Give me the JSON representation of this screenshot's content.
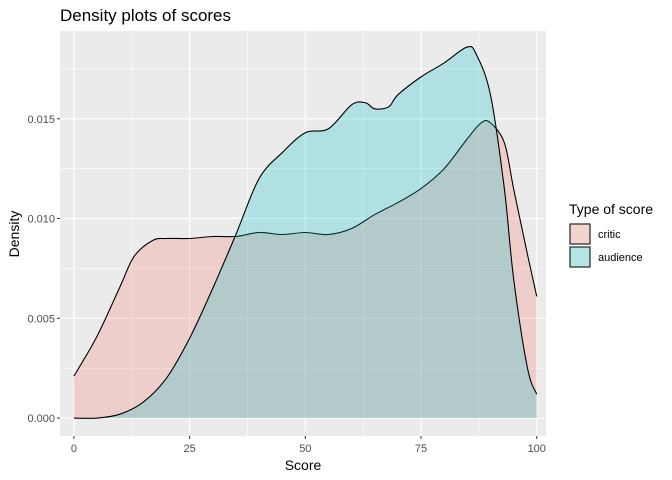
{
  "chart_data": {
    "type": "area",
    "title": "Density plots of scores",
    "xlabel": "Score",
    "ylabel": "Density",
    "xlim": [
      -3,
      102
    ],
    "ylim": [
      -0.0009,
      0.0194
    ],
    "x_ticks": [
      0,
      25,
      50,
      75,
      100
    ],
    "x_tick_labels": [
      "0",
      "25",
      "50",
      "75",
      "100"
    ],
    "y_ticks": [
      0,
      0.005,
      0.01,
      0.015
    ],
    "y_tick_labels": [
      "0.000",
      "0.005",
      "0.010",
      "0.015"
    ],
    "grid": true,
    "legend": {
      "title": "Type of score",
      "position": "right"
    },
    "series": [
      {
        "name": "critic",
        "fill": "#F8766D",
        "x": [
          0,
          5,
          10,
          13,
          17,
          20,
          25,
          30,
          35,
          40,
          45,
          50,
          55,
          60,
          65,
          70,
          75,
          80,
          85,
          88,
          90,
          93,
          95,
          98,
          100
        ],
        "y": [
          0.0021,
          0.0041,
          0.0066,
          0.0081,
          0.0089,
          0.009,
          0.009,
          0.0091,
          0.0091,
          0.0093,
          0.0092,
          0.0093,
          0.0092,
          0.0095,
          0.0102,
          0.0108,
          0.0115,
          0.0125,
          0.014,
          0.0148,
          0.0148,
          0.0138,
          0.0115,
          0.0082,
          0.0061
        ]
      },
      {
        "name": "audience",
        "fill": "#00BFC4",
        "x": [
          0,
          5,
          10,
          15,
          20,
          25,
          30,
          35,
          40,
          45,
          50,
          55,
          60,
          63,
          65,
          68,
          70,
          75,
          80,
          85,
          87,
          90,
          93,
          95,
          98,
          100
        ],
        "y": [
          0.0,
          0.0,
          0.0002,
          0.0008,
          0.002,
          0.004,
          0.0065,
          0.0092,
          0.012,
          0.0133,
          0.0143,
          0.0145,
          0.0157,
          0.0158,
          0.0155,
          0.0156,
          0.0162,
          0.0171,
          0.0178,
          0.0186,
          0.0182,
          0.0162,
          0.0115,
          0.007,
          0.0025,
          0.0012
        ]
      }
    ]
  }
}
